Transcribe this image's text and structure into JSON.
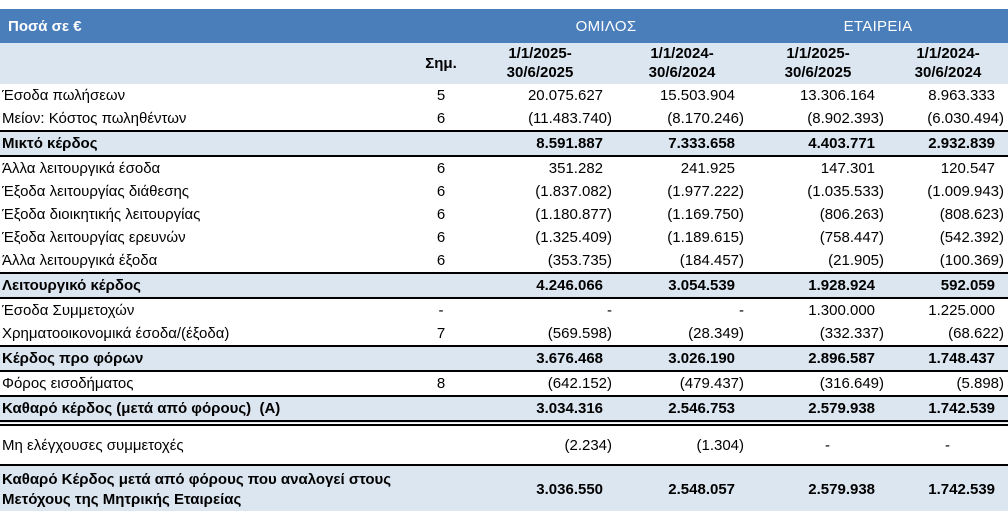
{
  "table": {
    "corner_label": "Ποσά σε €",
    "group_header": {
      "group": "ΟΜΙΛΟΣ",
      "company": "ΕΤΑΙΡΕΙΑ"
    },
    "note_header": "Σημ.",
    "period_headers": [
      {
        "l1": "1/1/2025-",
        "l2": "30/6/2025"
      },
      {
        "l1": "1/1/2024-",
        "l2": "30/6/2024"
      },
      {
        "l1": "1/1/2025-",
        "l2": "30/6/2025"
      },
      {
        "l1": "1/1/2024-",
        "l2": "30/6/2024"
      }
    ],
    "rows": [
      {
        "label": "Έσοδα πωλήσεων",
        "note": "5",
        "values": [
          "20.075.627",
          "15.503.904",
          "13.306.164",
          "8.963.333"
        ],
        "style": "normal"
      },
      {
        "label": "Μείον: Κόστος πωληθέντων",
        "note": "6",
        "values": [
          "(11.483.740)",
          "(8.170.246)",
          "(8.902.393)",
          "(6.030.494)"
        ],
        "style": "normal"
      },
      {
        "label": "Μικτό κέρδος",
        "note": "",
        "values": [
          "8.591.887",
          "7.333.658",
          "4.403.771",
          "2.932.839"
        ],
        "style": "total"
      },
      {
        "label": "Άλλα λειτουργικά έσοδα",
        "note": "6",
        "values": [
          "351.282",
          "241.925",
          "147.301",
          "120.547"
        ],
        "style": "normal"
      },
      {
        "label": "Έξοδα λειτουργίας διάθεσης",
        "note": "6",
        "values": [
          "(1.837.082)",
          "(1.977.222)",
          "(1.035.533)",
          "(1.009.943)"
        ],
        "style": "normal"
      },
      {
        "label": "Έξοδα διοικητικής λειτουργίας",
        "note": "6",
        "values": [
          "(1.180.877)",
          "(1.169.750)",
          "(806.263)",
          "(808.623)"
        ],
        "style": "normal"
      },
      {
        "label": "Έξοδα λειτουργίας ερευνών",
        "note": "6",
        "values": [
          "(1.325.409)",
          "(1.189.615)",
          "(758.447)",
          "(542.392)"
        ],
        "style": "normal"
      },
      {
        "label": "Άλλα λειτουργικά έξοδα",
        "note": "6",
        "values": [
          "(353.735)",
          "(184.457)",
          "(21.905)",
          "(100.369)"
        ],
        "style": "normal"
      },
      {
        "label": "Λειτουργικό κέρδος",
        "note": "",
        "values": [
          "4.246.066",
          "3.054.539",
          "1.928.924",
          "592.059"
        ],
        "style": "total"
      },
      {
        "label": "Έσοδα Συμμετοχών",
        "note": "-",
        "values": [
          "-",
          "-",
          "1.300.000",
          "1.225.000"
        ],
        "style": "normal"
      },
      {
        "label": "Χρηματοοικονομικά έσοδα/(έξοδα)",
        "note": "7",
        "values": [
          "(569.598)",
          "(28.349)",
          "(332.337)",
          "(68.622)"
        ],
        "style": "normal"
      },
      {
        "label": "Κέρδος προ φόρων",
        "note": "",
        "values": [
          "3.676.468",
          "3.026.190",
          "2.896.587",
          "1.748.437"
        ],
        "style": "total"
      },
      {
        "label": "Φόρος εισοδήματος",
        "note": "8",
        "values": [
          "(642.152)",
          "(479.437)",
          "(316.649)",
          "(5.898)"
        ],
        "style": "normal"
      },
      {
        "label": "Καθαρό κέρδος (μετά από φόρους)  (Α)",
        "note": "",
        "values": [
          "3.034.316",
          "2.546.753",
          "2.579.938",
          "1.742.539"
        ],
        "style": "total-double"
      },
      {
        "label": "Μη ελέγχουσες συμμετοχές",
        "note": "",
        "values": [
          "(2.234)",
          "(1.304)",
          "-",
          "-"
        ],
        "style": "spacer"
      },
      {
        "label": "Καθαρό Κέρδος μετά από φόρους που αναλογεί στους Μετόχους της Μητρικής Εταιρείας",
        "note": "",
        "values": [
          "3.036.550",
          "2.548.057",
          "2.579.938",
          "1.742.539"
        ],
        "style": "grand"
      }
    ],
    "colors": {
      "header_blue": "#4a7ebb",
      "band_light_blue": "#dce6f1",
      "border_black": "#000000",
      "header_text": "#ffffff",
      "body_text": "#000000"
    }
  }
}
